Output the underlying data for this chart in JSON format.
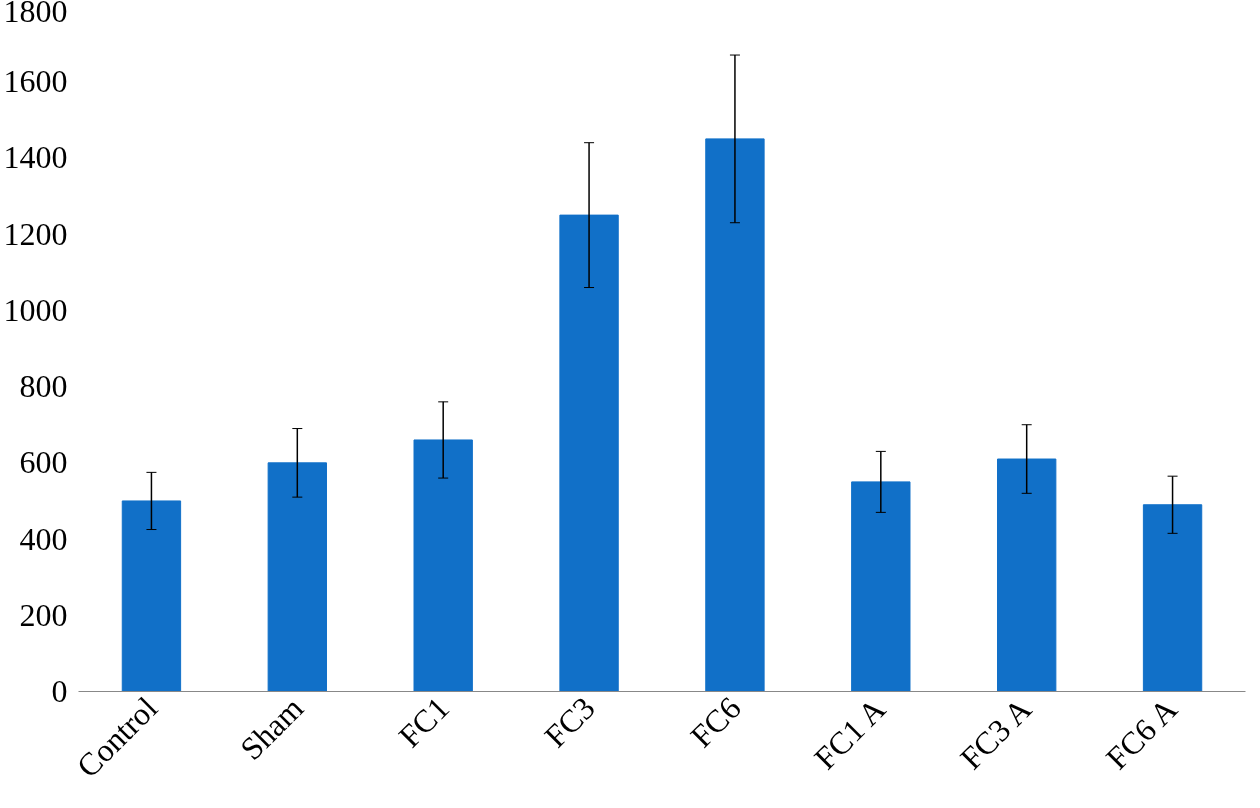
{
  "chart_data": {
    "type": "bar",
    "categories": [
      "Control",
      "Sham",
      "FC1",
      "FC3",
      "FC6",
      "FC1 A",
      "FC3 A",
      "FC6 A"
    ],
    "values": [
      500,
      600,
      660,
      1250,
      1450,
      550,
      610,
      490
    ],
    "errors": [
      75,
      90,
      100,
      190,
      220,
      80,
      90,
      75
    ],
    "color": "#1170c8",
    "ylim": [
      0,
      1800
    ],
    "yticks": [
      0,
      200,
      400,
      600,
      800,
      1000,
      1200,
      1400,
      1600,
      1800
    ],
    "grid": false
  }
}
